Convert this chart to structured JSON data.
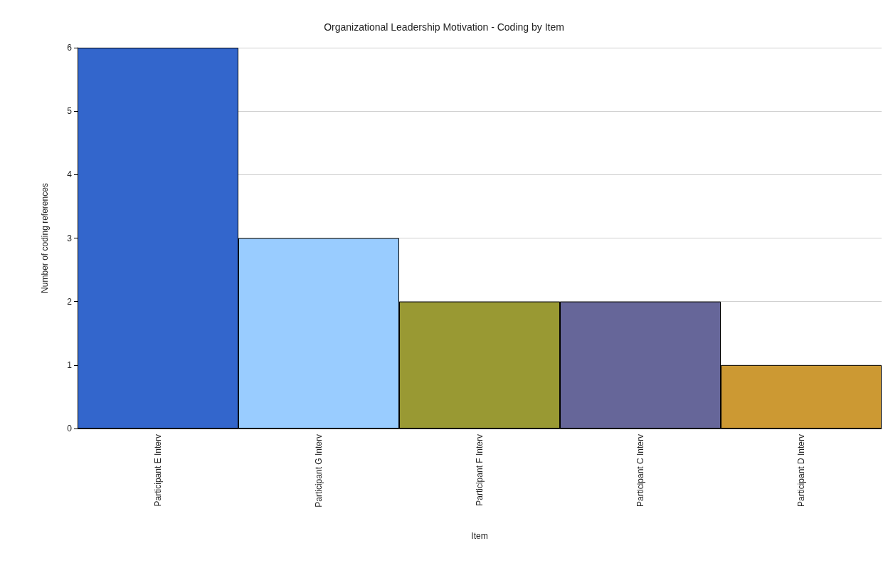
{
  "chart_data": {
    "type": "bar",
    "title": "Organizational Leadership Motivation - Coding by Item",
    "xlabel": "Item",
    "ylabel": "Number of coding references",
    "categories": [
      "Participant E Interv",
      "Participant G Interv",
      "Participant F Interv",
      "Participant C Interv",
      "Participant D Interv"
    ],
    "values": [
      6,
      3,
      2,
      2,
      1
    ],
    "colors": [
      "#3366cc",
      "#99ccff",
      "#999933",
      "#666699",
      "#cc9933"
    ],
    "ylim": [
      0,
      6
    ],
    "yticks": [
      0,
      1,
      2,
      3,
      4,
      5,
      6
    ],
    "grid": "y"
  }
}
